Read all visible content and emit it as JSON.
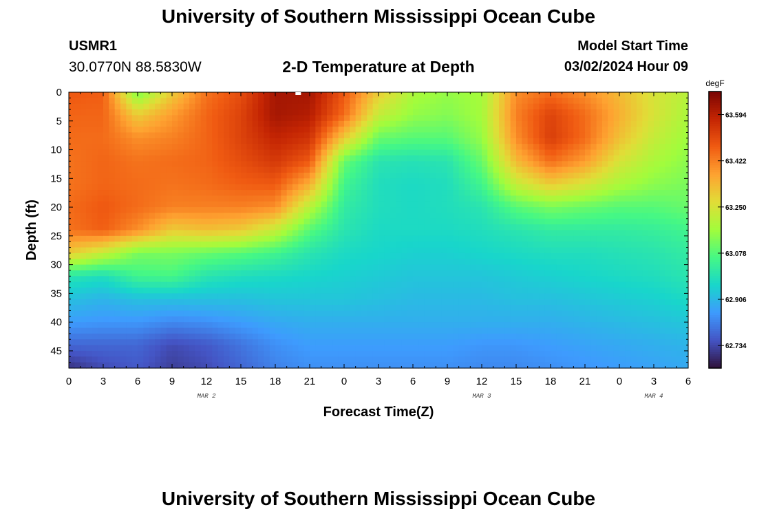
{
  "header": {
    "title": "University of Southern Mississippi Ocean Cube",
    "station": "USMR1",
    "coords": "30.0770N  88.5830W",
    "subtitle": "2-D Temperature at Depth",
    "model_label": "Model Start Time",
    "model_time": "03/02/2024 Hour 09"
  },
  "footer": {
    "title": "University of Southern Mississippi Ocean Cube"
  },
  "chart_data": {
    "type": "heatmap",
    "title": "2-D Temperature at Depth",
    "xlabel": "Forecast Time(Z)",
    "ylabel": "Depth (ft)",
    "x_ticks": [
      "0",
      "3",
      "6",
      "9",
      "12",
      "15",
      "18",
      "21",
      "0",
      "3",
      "6",
      "9",
      "12",
      "15",
      "18",
      "21",
      "0",
      "3",
      "6"
    ],
    "x_range_hours": [
      0,
      54
    ],
    "date_labels": [
      {
        "text": "MAR 2",
        "hour": 12
      },
      {
        "text": "MAR 3",
        "hour": 36
      },
      {
        "text": "MAR 4",
        "hour": 51
      }
    ],
    "y_ticks": [
      "0",
      "5",
      "10",
      "15",
      "20",
      "25",
      "30",
      "35",
      "40",
      "45"
    ],
    "y_range": [
      0,
      48
    ],
    "colorbar": {
      "unit": "degF",
      "min": 62.65,
      "max": 63.68,
      "tick_values": [
        63.594,
        63.422,
        63.25,
        63.078,
        62.906,
        62.734
      ],
      "tick_labels": [
        "63.594",
        "63.422",
        "63.250",
        "63.078",
        "62.906",
        "62.734"
      ],
      "palette": [
        "#30123b",
        "#4454c4",
        "#3e9bfe",
        "#18d6cb",
        "#46f884",
        "#a2fc3c",
        "#e1dd37",
        "#fea331",
        "#f05b12",
        "#c42503",
        "#7a0403"
      ]
    },
    "depths_ft": [
      0,
      4,
      8,
      12,
      16,
      20,
      24,
      28,
      32,
      36,
      40,
      44,
      48
    ],
    "times_hr": [
      0,
      3,
      6,
      9,
      12,
      15,
      18,
      21,
      24,
      27,
      30,
      33,
      36,
      39,
      42,
      45,
      48,
      51,
      54
    ],
    "values_degF": [
      [
        63.48,
        63.47,
        63.12,
        63.3,
        63.44,
        63.5,
        63.62,
        63.62,
        63.48,
        63.3,
        63.18,
        63.15,
        63.17,
        63.4,
        63.45,
        63.4,
        63.33,
        63.25,
        63.2
      ],
      [
        63.46,
        63.46,
        63.3,
        63.38,
        63.46,
        63.52,
        63.62,
        63.6,
        63.45,
        63.22,
        63.15,
        63.13,
        63.17,
        63.42,
        63.52,
        63.45,
        63.35,
        63.25,
        63.18
      ],
      [
        63.45,
        63.45,
        63.4,
        63.42,
        63.46,
        63.52,
        63.58,
        63.55,
        63.3,
        63.1,
        63.08,
        63.08,
        63.15,
        63.4,
        63.53,
        63.45,
        63.32,
        63.22,
        63.16
      ],
      [
        63.44,
        63.46,
        63.44,
        63.45,
        63.46,
        63.5,
        63.54,
        63.48,
        63.1,
        63.0,
        62.99,
        63.0,
        63.1,
        63.33,
        63.45,
        63.38,
        63.25,
        63.18,
        63.14
      ],
      [
        63.44,
        63.46,
        63.45,
        63.44,
        63.45,
        63.47,
        63.48,
        63.35,
        63.05,
        62.98,
        62.97,
        62.98,
        63.05,
        63.22,
        63.3,
        63.25,
        63.18,
        63.14,
        63.12
      ],
      [
        63.45,
        63.48,
        63.45,
        63.42,
        63.42,
        63.42,
        63.4,
        63.2,
        63.02,
        62.98,
        62.97,
        62.98,
        63.0,
        63.08,
        63.12,
        63.1,
        63.08,
        63.08,
        63.1
      ],
      [
        63.44,
        63.47,
        63.4,
        63.3,
        63.32,
        63.3,
        63.22,
        63.08,
        63.0,
        62.97,
        62.97,
        62.97,
        62.98,
        63.0,
        63.02,
        63.02,
        63.02,
        63.03,
        63.05
      ],
      [
        63.3,
        63.22,
        63.12,
        63.12,
        63.1,
        63.08,
        63.05,
        63.0,
        62.97,
        62.96,
        62.95,
        62.95,
        62.96,
        62.97,
        62.98,
        62.98,
        62.99,
        63.0,
        63.02
      ],
      [
        63.0,
        62.98,
        63.05,
        63.06,
        63.0,
        62.98,
        62.97,
        62.96,
        62.95,
        62.94,
        62.93,
        62.93,
        62.93,
        62.94,
        62.95,
        62.96,
        62.97,
        62.98,
        63.0
      ],
      [
        62.92,
        62.9,
        62.92,
        62.92,
        62.92,
        62.92,
        62.93,
        62.93,
        62.93,
        62.92,
        62.91,
        62.91,
        62.91,
        62.92,
        62.92,
        62.93,
        62.94,
        62.95,
        62.97
      ],
      [
        62.86,
        62.85,
        62.85,
        62.83,
        62.84,
        62.86,
        62.88,
        62.89,
        62.89,
        62.89,
        62.89,
        62.89,
        62.89,
        62.89,
        62.89,
        62.9,
        62.91,
        62.92,
        62.93
      ],
      [
        62.78,
        62.78,
        62.78,
        62.74,
        62.76,
        62.8,
        62.84,
        62.86,
        62.86,
        62.86,
        62.86,
        62.86,
        62.85,
        62.85,
        62.86,
        62.87,
        62.88,
        62.89,
        62.9
      ],
      [
        62.7,
        62.74,
        62.76,
        62.72,
        62.74,
        62.78,
        62.82,
        62.84,
        62.84,
        62.84,
        62.84,
        62.84,
        62.83,
        62.83,
        62.84,
        62.85,
        62.86,
        62.87,
        62.88
      ]
    ]
  }
}
